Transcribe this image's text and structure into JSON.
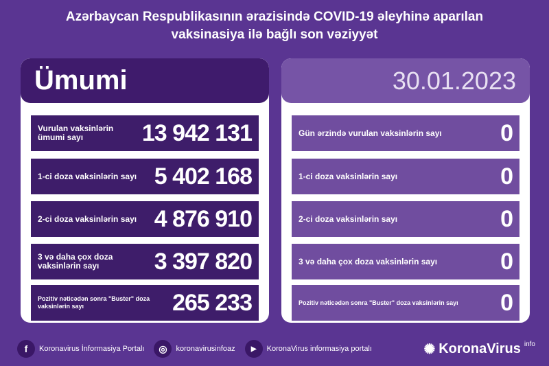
{
  "title": {
    "line1": "Azərbaycan Respublikasının ərazisində COVID-19 əleyhinə aparılan",
    "line2": "vaksinasiya ilə bağlı son vəziyyət"
  },
  "left": {
    "header": "Ümumi",
    "rows": [
      {
        "label": "Vurulan vaksinlərin ümumi sayı",
        "value": "13 942 131"
      },
      {
        "label": "1-ci doza vaksinlərin sayı",
        "value": "5 402 168"
      },
      {
        "label": "2-ci doza vaksinlərin sayı",
        "value": "4 876 910"
      },
      {
        "label": "3 və daha çox doza vaksinlərin sayı",
        "value": "3 397 820"
      },
      {
        "label": "Pozitiv nəticədən sonra \"Buster\" doza vaksinlərin sayı",
        "value": "265 233"
      }
    ]
  },
  "right": {
    "header": "30.01.2023",
    "rows": [
      {
        "label": "Gün ərzində vurulan vaksinlərin sayı",
        "value": "0"
      },
      {
        "label": "1-ci doza vaksinlərin sayı",
        "value": "0"
      },
      {
        "label": "2-ci doza vaksinlərin sayı",
        "value": "0"
      },
      {
        "label": "3 və daha çox doza vaksinlərin sayı",
        "value": "0"
      },
      {
        "label": "Pozitiv nəticədən sonra \"Buster\" doza vaksinlərin sayı",
        "value": "0"
      }
    ]
  },
  "footer": {
    "facebook": "Koronavirus İnformasiya Portalı",
    "instagram": "koronavirusinfoaz",
    "youtube": "KoronaVirus informasiya portalı",
    "brand": "KoronaVirus",
    "brand_sup": "info"
  },
  "icons": {
    "facebook": "f",
    "instagram": "◎",
    "youtube": "▶",
    "brand": "✺"
  }
}
